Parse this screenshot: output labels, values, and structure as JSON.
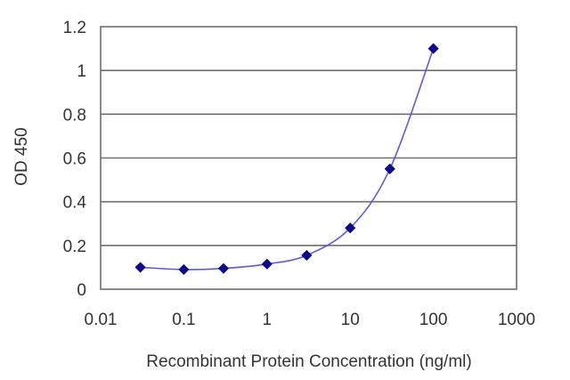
{
  "chart_data": {
    "type": "scatter",
    "title": "",
    "xlabel": "Recombinant Protein Concentration (ng/ml)",
    "ylabel": "OD 450",
    "x_scale": "log",
    "xlim": [
      0.01,
      1000
    ],
    "ylim": [
      0,
      1.2
    ],
    "x_ticks": [
      0.01,
      0.1,
      1,
      10,
      100,
      1000
    ],
    "x_tick_labels": [
      "0.01",
      "0.1",
      "1",
      "10",
      "100",
      "1000"
    ],
    "y_ticks": [
      0,
      0.2,
      0.4,
      0.6,
      0.8,
      1,
      1.2
    ],
    "y_tick_labels": [
      "0",
      "0.2",
      "0.4",
      "0.6",
      "0.8",
      "1",
      "1.2"
    ],
    "grid": "horizontal",
    "legend": "none",
    "series": [
      {
        "x": [
          0.03,
          0.1,
          0.3,
          1,
          3,
          10,
          30,
          100
        ],
        "y": [
          0.1,
          0.09,
          0.095,
          0.115,
          0.155,
          0.28,
          0.55,
          1.1
        ],
        "color": "#0a0a8c",
        "line_color": "#5a5ae6",
        "marker": "diamond"
      }
    ]
  }
}
